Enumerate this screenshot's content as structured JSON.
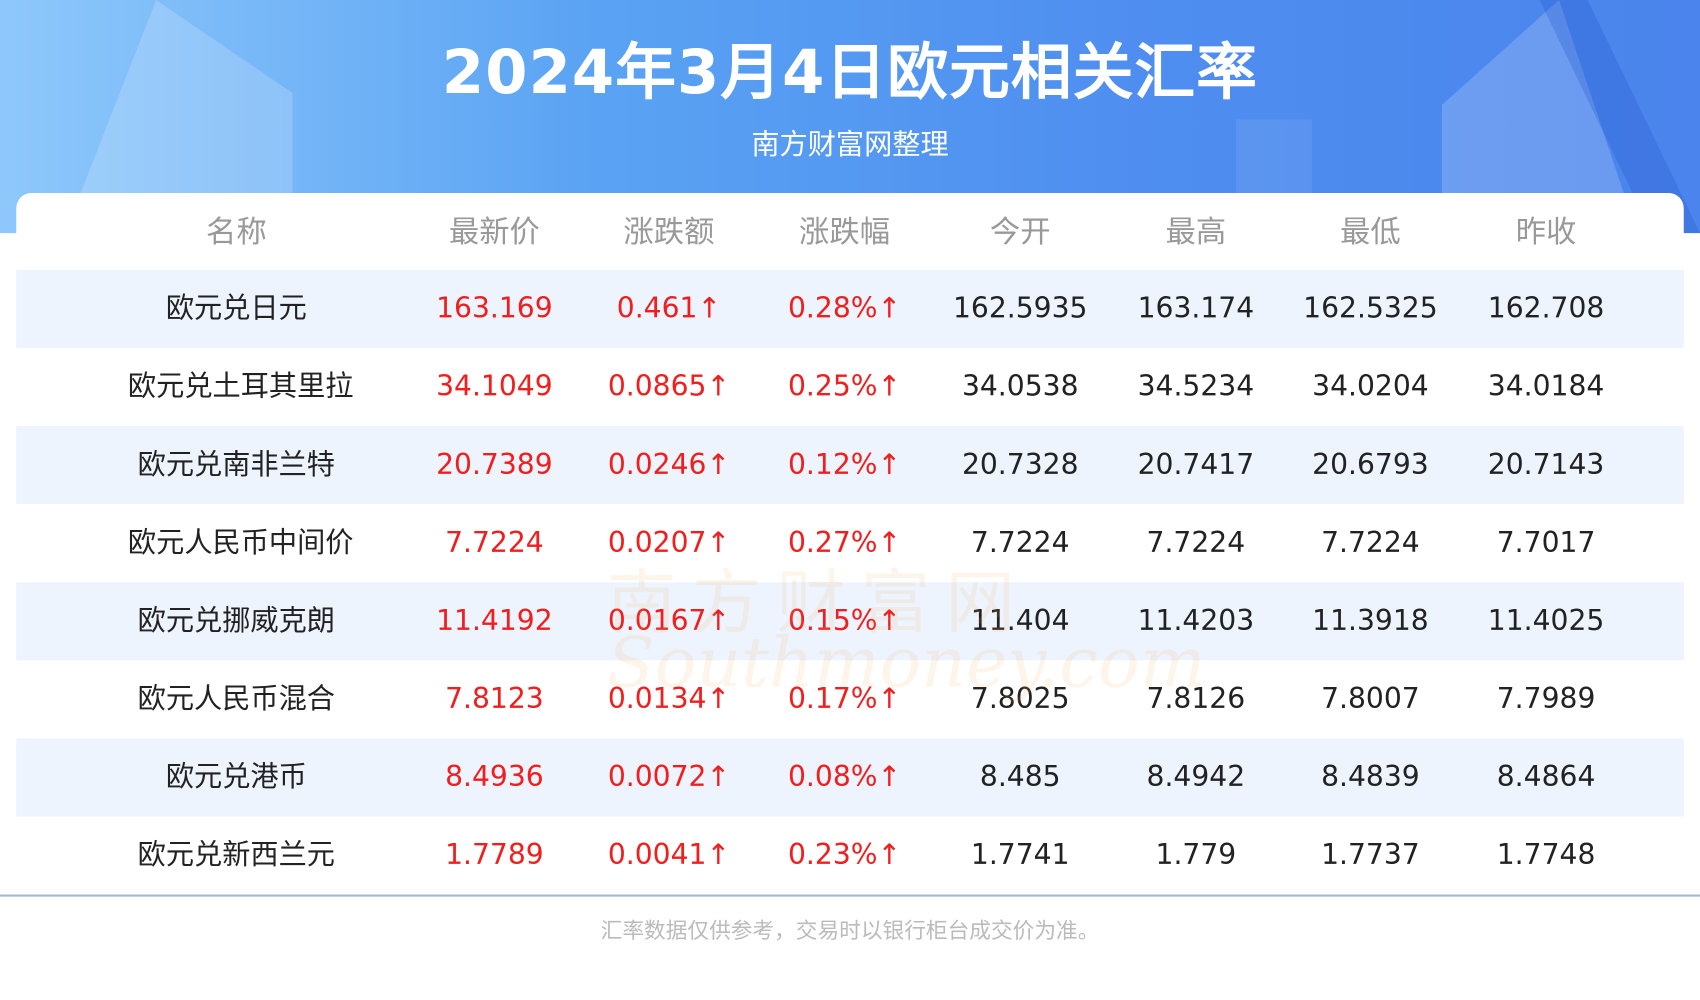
{
  "header": {
    "title": "2024年3月4日欧元相关汇率",
    "subtitle": "南方财富网整理"
  },
  "table": {
    "columns": [
      "名称",
      "最新价",
      "涨跌额",
      "涨跌幅",
      "今开",
      "最高",
      "最低",
      "昨收"
    ],
    "rows": [
      [
        "欧元兑日元",
        "163.169",
        "0.461↑",
        "0.28%↑",
        "162.5935",
        "163.174",
        "162.5325",
        "162.708"
      ],
      [
        "欧元兑土耳其里拉",
        "34.1049",
        "0.0865↑",
        "0.25%↑",
        "34.0538",
        "34.5234",
        "34.0204",
        "34.0184"
      ],
      [
        "欧元兑南非兰特",
        "20.7389",
        "0.0246↑",
        "0.12%↑",
        "20.7328",
        "20.7417",
        "20.6793",
        "20.7143"
      ],
      [
        "欧元人民币中间价",
        "7.7224",
        "0.0207↑",
        "0.27%↑",
        "7.7224",
        "7.7224",
        "7.7224",
        "7.7017"
      ],
      [
        "欧元兑挪威克朗",
        "11.4192",
        "0.0167↑",
        "0.15%↑",
        "11.404",
        "11.4203",
        "11.3918",
        "11.4025"
      ],
      [
        "欧元人民币混合",
        "7.8123",
        "0.0134↑",
        "0.17%↑",
        "7.8025",
        "7.8126",
        "7.8007",
        "7.7989"
      ],
      [
        "欧元兑港币",
        "8.4936",
        "0.0072↑",
        "0.08%↑",
        "8.485",
        "8.4942",
        "8.4839",
        "8.4864"
      ],
      [
        "欧元兑新西兰元",
        "1.7789",
        "0.0041↑",
        "0.23%↑",
        "1.7741",
        "1.779",
        "1.7737",
        "1.7748"
      ]
    ]
  },
  "watermark": {
    "cn": "南方财富网",
    "en": "Southmoney.com"
  },
  "footer": {
    "note": "汇率数据仅供参考，交易时以银行柜台成交价为准。"
  },
  "colors": {
    "rise": "#f21d1d",
    "header_blue": "#4f8ff0",
    "alt_row": "#eef4fd"
  }
}
